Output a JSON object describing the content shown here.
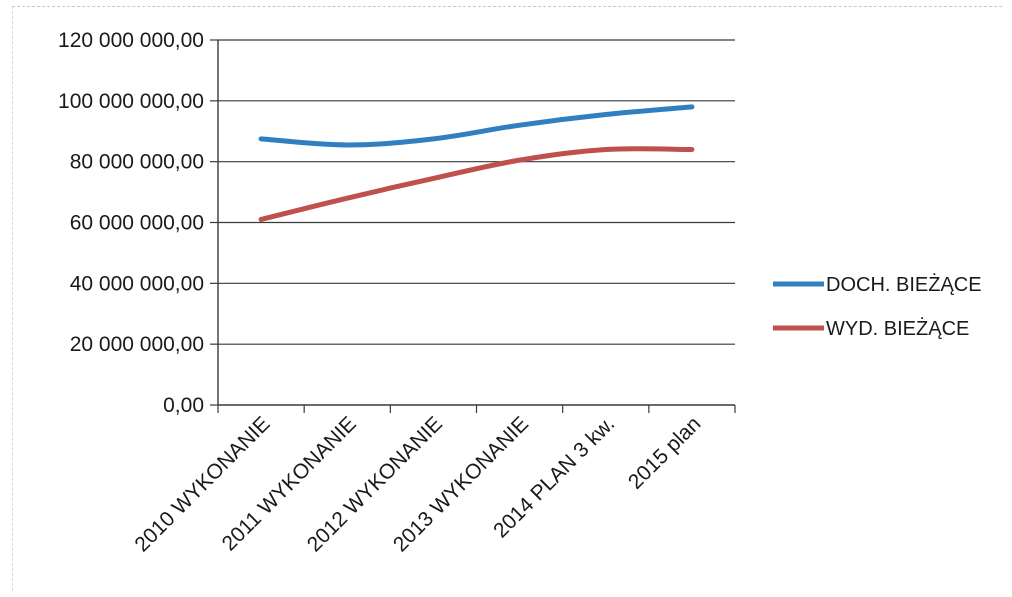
{
  "chart_data": {
    "type": "line",
    "categories": [
      "2010 WYKONANIE",
      "2011 WYKONANIE",
      "2012 WYKONANIE",
      "2013 WYKONANIE",
      "2014 PLAN 3 kw.",
      "2015 plan"
    ],
    "series": [
      {
        "name": "DOCH. BIEŻĄCE",
        "color": "#2f7fc1",
        "values": [
          87500000,
          85500000,
          87500000,
          92000000,
          95500000,
          98000000
        ]
      },
      {
        "name": "WYD. BIEŻĄCE",
        "color": "#c0504d",
        "values": [
          61000000,
          68000000,
          74500000,
          80500000,
          84000000,
          84000000
        ]
      }
    ],
    "ylim": [
      0,
      120000000
    ],
    "yticks": [
      "0,00",
      "20 000 000,00",
      "40 000 000,00",
      "60 000 000,00",
      "80 000 000,00",
      "100 000 000,00",
      "120 000 000,00"
    ],
    "title": "",
    "xlabel": "",
    "ylabel": "",
    "grid": true,
    "legend": "right"
  }
}
